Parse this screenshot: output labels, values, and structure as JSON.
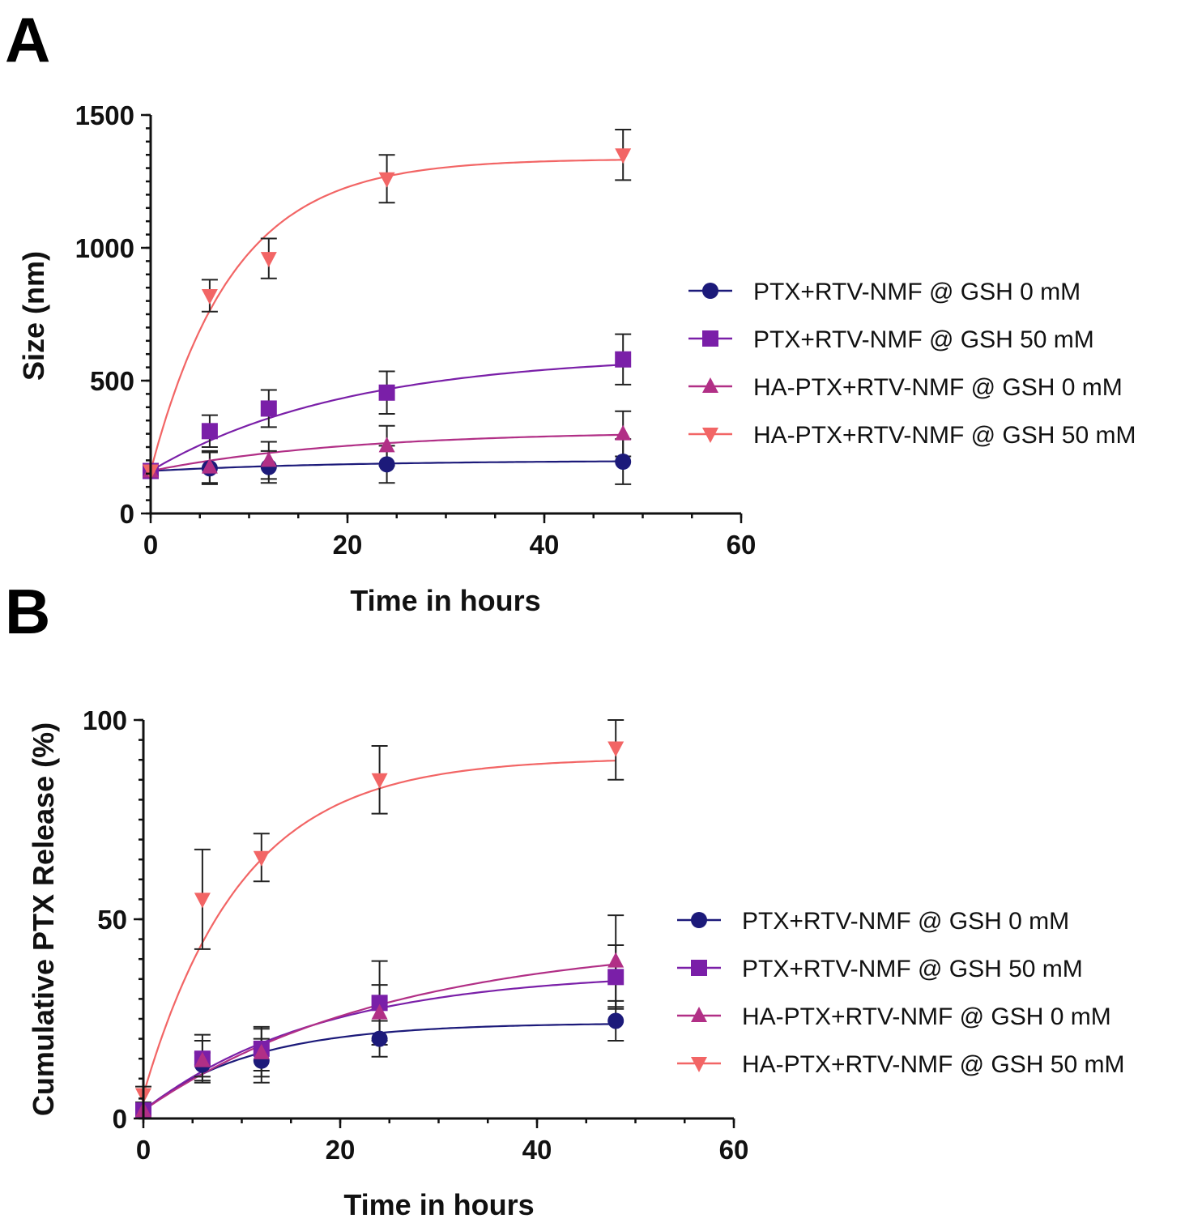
{
  "chart_data": [
    {
      "type": "scatter",
      "panel_label": "A",
      "xlabel": "Time in hours",
      "ylabel": "Size (nm)",
      "xlim": [
        0,
        60
      ],
      "ylim": [
        0,
        1500
      ],
      "xticks": [
        "0",
        "20",
        "40",
        "60"
      ],
      "yticks": [
        "0",
        "500",
        "1000",
        "1500"
      ],
      "x": [
        0,
        6,
        12,
        24,
        48
      ],
      "legend_position": "right",
      "series": [
        {
          "name": "PTX+RTV-NMF @ GSH 0 mM",
          "marker": "circle",
          "color": "#1c1a7a",
          "values": [
            160,
            170,
            175,
            185,
            195
          ],
          "errors": [
            20,
            60,
            60,
            70,
            85
          ],
          "fit": {
            "y0": 160,
            "plateau": 200,
            "k": 0.05
          }
        },
        {
          "name": "PTX+RTV-NMF @ GSH 50 mM",
          "marker": "square",
          "color": "#7a1fa8",
          "values": [
            160,
            310,
            395,
            455,
            580
          ],
          "errors": [
            20,
            60,
            70,
            80,
            95
          ],
          "fit": {
            "y0": 160,
            "plateau": 600,
            "k": 0.05
          }
        },
        {
          "name": "HA-PTX+RTV-NMF @ GSH 0 mM",
          "marker": "triangle-up",
          "color": "#b12f86",
          "values": [
            160,
            175,
            200,
            255,
            300
          ],
          "errors": [
            20,
            60,
            70,
            75,
            85
          ],
          "fit": {
            "y0": 160,
            "plateau": 310,
            "k": 0.05
          }
        },
        {
          "name": "HA-PTX+RTV-NMF @ GSH 50 mM",
          "marker": "triangle-down",
          "color": "#f26565",
          "values": [
            160,
            820,
            960,
            1260,
            1350
          ],
          "errors": [
            20,
            60,
            75,
            90,
            95
          ],
          "fit": {
            "y0": 160,
            "plateau": 1335,
            "k": 0.12
          }
        }
      ]
    },
    {
      "type": "scatter",
      "panel_label": "B",
      "xlabel": "Time in hours",
      "ylabel": "Cumulative PTX Release (%)",
      "xlim": [
        0,
        60
      ],
      "ylim": [
        0,
        100
      ],
      "xticks": [
        "0",
        "20",
        "40",
        "60"
      ],
      "yticks": [
        "0",
        "50",
        "100"
      ],
      "x": [
        0,
        6,
        12,
        24,
        48
      ],
      "legend_position": "right",
      "series": [
        {
          "name": "PTX+RTV-NMF @ GSH 0 mM",
          "marker": "circle",
          "color": "#1c1a7a",
          "values": [
            2,
            13.5,
            14.5,
            20,
            24.5
          ],
          "errors": [
            2,
            3,
            5.5,
            4.5,
            5
          ],
          "fit": {
            "y0": 2,
            "plateau": 24,
            "k": 0.09
          }
        },
        {
          "name": "PTX+RTV-NMF @ GSH 50 mM",
          "marker": "square",
          "color": "#7a1fa8",
          "values": [
            2,
            15,
            17.5,
            29,
            35.5
          ],
          "errors": [
            2,
            6,
            5.5,
            10.5,
            8
          ],
          "fit": {
            "y0": 2,
            "plateau": 37,
            "k": 0.055
          }
        },
        {
          "name": "HA-PTX+RTV-NMF @ GSH 0 mM",
          "marker": "triangle-up",
          "color": "#b12f86",
          "values": [
            2,
            14.5,
            16.5,
            26.5,
            39.5
          ],
          "errors": [
            2,
            5,
            6,
            7,
            11.5
          ],
          "fit": {
            "y0": 2,
            "plateau": 45,
            "k": 0.04
          }
        },
        {
          "name": "HA-PTX+RTV-NMF @ GSH 50 mM",
          "marker": "triangle-down",
          "color": "#f26565",
          "values": [
            6,
            55,
            65.5,
            85,
            93
          ],
          "errors": [
            2,
            12.5,
            6,
            8.5,
            8
          ],
          "fit": {
            "y0": 6,
            "plateau": 90.5,
            "k": 0.1
          }
        }
      ]
    }
  ]
}
